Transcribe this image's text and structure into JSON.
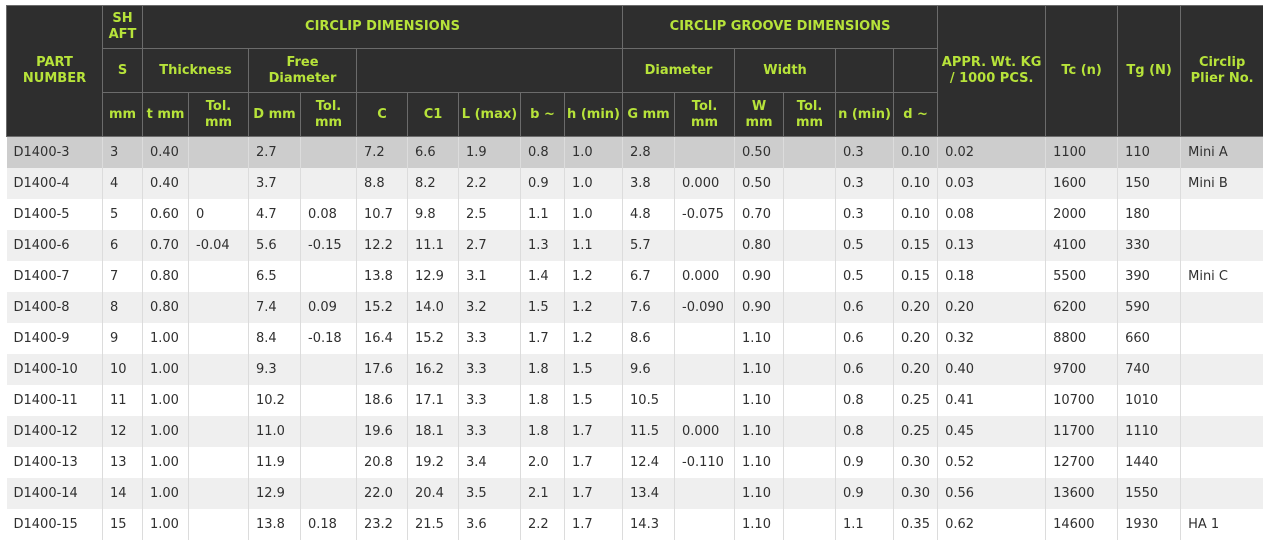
{
  "headers": {
    "part_number": "PART NUMBER",
    "shaft": "SH AFT",
    "circlip_dimensions": "CIRCLIP DIMENSIONS",
    "groove_dimensions": "CIRCLIP GROOVE DIMENSIONS",
    "weight": "APPR. Wt. KG / 1000 PCS.",
    "tc": "Tc (n)",
    "tg": "Tg (N)",
    "plier": "Circlip Plier No.",
    "s": "S",
    "thickness": "Thickness",
    "free_diameter": "Free Diameter",
    "diameter": "Diameter",
    "width": "Width",
    "mm": "mm",
    "t_mm": "t mm",
    "tol_mm_1": "Tol. mm",
    "d_mm": "D mm",
    "tol_mm_2": "Tol. mm",
    "c": "C",
    "c1": "C1",
    "l_max": "L (max)",
    "b": "b ~",
    "h_min": "h (min)",
    "g_mm": "G mm",
    "tol_mm_3": "Tol. mm",
    "w_mm": "W mm",
    "tol_mm_4": "Tol. mm",
    "n_min": "n (min)",
    "d_approx": "d ~"
  },
  "rows": [
    [
      "D1400-3",
      "3",
      "0.40",
      "",
      "2.7",
      "",
      "7.2",
      "6.6",
      "1.9",
      "0.8",
      "1.0",
      "2.8",
      "",
      "0.50",
      "",
      "0.3",
      "0.10",
      "0.02",
      "1100",
      "110",
      "Mini A"
    ],
    [
      "D1400-4",
      "4",
      "0.40",
      "",
      "3.7",
      "",
      "8.8",
      "8.2",
      "2.2",
      "0.9",
      "1.0",
      "3.8",
      "0.000",
      "0.50",
      "",
      "0.3",
      "0.10",
      "0.03",
      "1600",
      "150",
      "Mini B"
    ],
    [
      "D1400-5",
      "5",
      "0.60",
      "0",
      "4.7",
      "0.08",
      "10.7",
      "9.8",
      "2.5",
      "1.1",
      "1.0",
      "4.8",
      "-0.075",
      "0.70",
      "",
      "0.3",
      "0.10",
      "0.08",
      "2000",
      "180",
      ""
    ],
    [
      "D1400-6",
      "6",
      "0.70",
      "-0.04",
      "5.6",
      "-0.15",
      "12.2",
      "11.1",
      "2.7",
      "1.3",
      "1.1",
      "5.7",
      "",
      "0.80",
      "",
      "0.5",
      "0.15",
      "0.13",
      "4100",
      "330",
      ""
    ],
    [
      "D1400-7",
      "7",
      "0.80",
      "",
      "6.5",
      "",
      "13.8",
      "12.9",
      "3.1",
      "1.4",
      "1.2",
      "6.7",
      "0.000",
      "0.90",
      "",
      "0.5",
      "0.15",
      "0.18",
      "5500",
      "390",
      "Mini C"
    ],
    [
      "D1400-8",
      "8",
      "0.80",
      "",
      "7.4",
      "0.09",
      "15.2",
      "14.0",
      "3.2",
      "1.5",
      "1.2",
      "7.6",
      "-0.090",
      "0.90",
      "",
      "0.6",
      "0.20",
      "0.20",
      "6200",
      "590",
      ""
    ],
    [
      "D1400-9",
      "9",
      "1.00",
      "",
      "8.4",
      "-0.18",
      "16.4",
      "15.2",
      "3.3",
      "1.7",
      "1.2",
      "8.6",
      "",
      "1.10",
      "",
      "0.6",
      "0.20",
      "0.32",
      "8800",
      "660",
      ""
    ],
    [
      "D1400-10",
      "10",
      "1.00",
      "",
      "9.3",
      "",
      "17.6",
      "16.2",
      "3.3",
      "1.8",
      "1.5",
      "9.6",
      "",
      "1.10",
      "",
      "0.6",
      "0.20",
      "0.40",
      "9700",
      "740",
      ""
    ],
    [
      "D1400-11",
      "11",
      "1.00",
      "",
      "10.2",
      "",
      "18.6",
      "17.1",
      "3.3",
      "1.8",
      "1.5",
      "10.5",
      "",
      "1.10",
      "",
      "0.8",
      "0.25",
      "0.41",
      "10700",
      "1010",
      ""
    ],
    [
      "D1400-12",
      "12",
      "1.00",
      "",
      "11.0",
      "",
      "19.6",
      "18.1",
      "3.3",
      "1.8",
      "1.7",
      "11.5",
      "0.000",
      "1.10",
      "",
      "0.8",
      "0.25",
      "0.45",
      "11700",
      "1110",
      ""
    ],
    [
      "D1400-13",
      "13",
      "1.00",
      "",
      "11.9",
      "",
      "20.8",
      "19.2",
      "3.4",
      "2.0",
      "1.7",
      "12.4",
      "-0.110",
      "1.10",
      "",
      "0.9",
      "0.30",
      "0.52",
      "12700",
      "1440",
      ""
    ],
    [
      "D1400-14",
      "14",
      "1.00",
      "",
      "12.9",
      "",
      "22.0",
      "20.4",
      "3.5",
      "2.1",
      "1.7",
      "13.4",
      "",
      "1.10",
      "",
      "0.9",
      "0.30",
      "0.56",
      "13600",
      "1550",
      ""
    ],
    [
      "D1400-15",
      "15",
      "1.00",
      "",
      "13.8",
      "0.18",
      "23.2",
      "21.5",
      "3.6",
      "2.2",
      "1.7",
      "14.3",
      "",
      "1.10",
      "",
      "1.1",
      "0.35",
      "0.62",
      "14600",
      "1930",
      "HA 1"
    ]
  ]
}
